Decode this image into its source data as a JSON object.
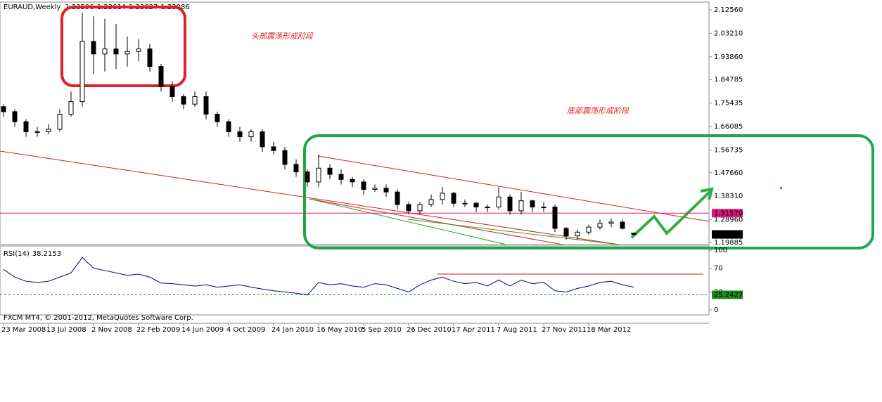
{
  "chart_data": {
    "type": "candlestick",
    "title": "EURAUD,Weekly",
    "categories": [
      "23 Mar 2008",
      null,
      null,
      null,
      "13 Jul 2008",
      null,
      null,
      null,
      "2 Nov 2008",
      null,
      null,
      null,
      "22 Feb 2009",
      null,
      null,
      null,
      "14 Jun 2009",
      null,
      null,
      null,
      "4 Oct 2009",
      null,
      null,
      null,
      "24 Jan 2010",
      null,
      null,
      null,
      "16 May 2010",
      null,
      null,
      null,
      "5 Sep 2010",
      null,
      null,
      null,
      "26 Dec 2010",
      null,
      null,
      null,
      "17 Apr 2011",
      null,
      null,
      null,
      "7 Aug 2011",
      null,
      null,
      null,
      "27 Nov 2011",
      null,
      null,
      null,
      "18 Mar 2012",
      null,
      null,
      null,
      null
    ],
    "open": [
      1.74,
      1.72,
      1.68,
      1.64,
      1.64,
      1.65,
      1.71,
      1.76,
      2.0,
      1.95,
      1.97,
      1.95,
      1.96,
      1.97,
      1.9,
      1.82,
      1.78,
      1.75,
      1.78,
      1.71,
      1.68,
      1.64,
      1.62,
      1.64,
      1.58,
      1.565,
      1.51,
      1.48,
      1.44,
      1.495,
      1.47,
      1.45,
      1.44,
      1.41,
      1.415,
      1.4,
      1.35,
      1.325,
      1.35,
      1.37,
      1.395,
      1.355,
      1.355,
      1.34,
      1.34,
      1.38,
      1.325,
      1.365,
      1.34,
      1.34,
      1.255,
      1.225,
      1.24,
      1.26,
      1.275,
      1.28,
      1.23596
    ],
    "high": [
      1.75,
      1.73,
      1.69,
      1.66,
      1.67,
      1.73,
      1.8,
      2.115,
      2.1,
      2.09,
      2.07,
      2.02,
      2.01,
      1.99,
      1.91,
      1.84,
      1.79,
      1.8,
      1.8,
      1.72,
      1.69,
      1.66,
      1.65,
      1.65,
      1.6,
      1.58,
      1.53,
      1.49,
      1.55,
      1.51,
      1.49,
      1.46,
      1.45,
      1.43,
      1.43,
      1.41,
      1.36,
      1.36,
      1.39,
      1.42,
      1.4,
      1.37,
      1.36,
      1.35,
      1.42,
      1.39,
      1.4,
      1.37,
      1.36,
      1.35,
      1.26,
      1.25,
      1.27,
      1.29,
      1.295,
      1.29,
      1.23614
    ],
    "low": [
      1.7,
      1.66,
      1.62,
      1.62,
      1.63,
      1.64,
      1.7,
      1.74,
      1.87,
      1.88,
      1.89,
      1.9,
      1.92,
      1.88,
      1.8,
      1.76,
      1.73,
      1.74,
      1.69,
      1.66,
      1.62,
      1.6,
      1.6,
      1.56,
      1.55,
      1.49,
      1.46,
      1.42,
      1.42,
      1.45,
      1.43,
      1.42,
      1.39,
      1.4,
      1.38,
      1.33,
      1.31,
      1.31,
      1.34,
      1.35,
      1.34,
      1.34,
      1.32,
      1.32,
      1.33,
      1.31,
      1.31,
      1.32,
      1.32,
      1.24,
      1.21,
      1.21,
      1.23,
      1.25,
      1.26,
      1.25,
      1.23027
    ],
    "close": [
      1.72,
      1.68,
      1.64,
      1.64,
      1.65,
      1.71,
      1.76,
      2.0,
      1.95,
      1.97,
      1.95,
      1.96,
      1.97,
      1.9,
      1.82,
      1.78,
      1.75,
      1.78,
      1.71,
      1.68,
      1.64,
      1.62,
      1.64,
      1.58,
      1.565,
      1.51,
      1.48,
      1.44,
      1.495,
      1.47,
      1.45,
      1.44,
      1.41,
      1.415,
      1.4,
      1.35,
      1.325,
      1.35,
      1.37,
      1.395,
      1.355,
      1.355,
      1.34,
      1.34,
      1.38,
      1.325,
      1.365,
      1.34,
      1.34,
      1.255,
      1.225,
      1.24,
      1.26,
      1.275,
      1.28,
      1.255,
      1.23086
    ],
    "ylim": [
      1.1904,
      2.1566
    ],
    "yticks": [
      {
        "value": 2.1256,
        "label": "2.12560"
      },
      {
        "value": 2.0321,
        "label": "2.03210"
      },
      {
        "value": 1.9386,
        "label": "1.93860"
      },
      1.84785,
      1.75435,
      1.66085,
      1.56735,
      {
        "value": 1.4766,
        "label": "1.47660"
      },
      {
        "value": 1.3831,
        "label": "1.38310"
      },
      {
        "value": 1.2896,
        "label": "1.28960"
      },
      1.19885
    ],
    "hline": {
      "value": 1.3157,
      "label": "1.31570"
    },
    "annotations": [
      "头部震荡形成阶段",
      "底部震荡形成阶段"
    ],
    "rsi": {
      "name": "RSI(14)",
      "color": "#00008b",
      "values": [
        68,
        55,
        48,
        46,
        48,
        55,
        62,
        88,
        70,
        66,
        62,
        58,
        60,
        55,
        45,
        44,
        42,
        40,
        42,
        38,
        40,
        42,
        38,
        35,
        32,
        30,
        28,
        25,
        46,
        42,
        44,
        40,
        38,
        44,
        42,
        36,
        30,
        42,
        50,
        55,
        48,
        44,
        46,
        40,
        50,
        40,
        50,
        44,
        46,
        32,
        30,
        36,
        40,
        46,
        48,
        42,
        38.2153
      ],
      "ylim": [
        -8.4,
        107.2
      ],
      "yticks": [
        100,
        70,
        30,
        0
      ],
      "level": 25.2427
    },
    "footer": "FXCM MT4, © 2001-2012, MetaQuotes Software Corp."
  }
}
